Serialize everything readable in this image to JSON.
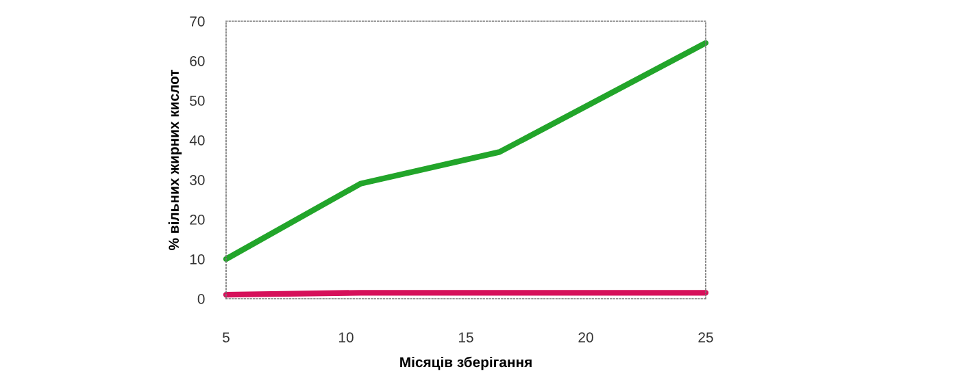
{
  "chart_data": {
    "type": "line",
    "xlabel": "Місяців зберігання",
    "ylabel": "% вільних жирних кислот",
    "x": [
      5,
      10.6,
      16.4,
      25
    ],
    "series": [
      {
        "color": "#22a52a",
        "values": [
          10,
          29,
          37,
          64.5
        ]
      },
      {
        "color": "#d6105a",
        "values": [
          1,
          1.5,
          1.5,
          1.5
        ]
      }
    ],
    "xlim": [
      5,
      25
    ],
    "xticks": [
      5,
      10,
      15,
      20,
      25
    ],
    "ylim": [
      0,
      70
    ],
    "yticks": [
      0,
      10,
      20,
      30,
      40,
      50,
      60,
      70
    ],
    "grid": false,
    "legend": false,
    "marker": "none",
    "line_style": "solid"
  }
}
